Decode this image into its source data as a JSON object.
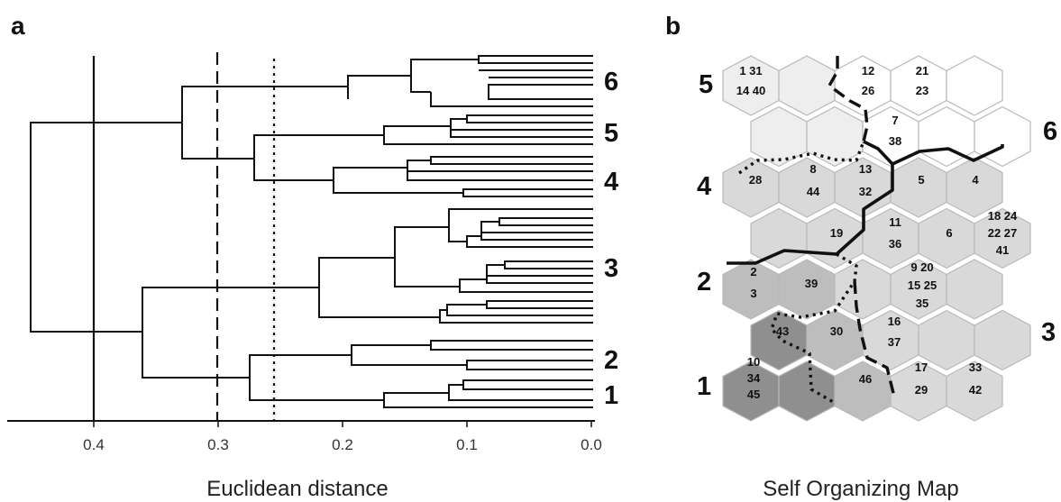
{
  "panel_a": {
    "label": "a",
    "xlabel": "Euclidean distance",
    "ticks": [
      "0.4",
      "0.3",
      "0.2",
      "0.1",
      "0.0"
    ],
    "cluster_labels": [
      "6",
      "5",
      "4",
      "3",
      "2",
      "1"
    ],
    "cut_lines": [
      {
        "value": 0.4,
        "style": "solid"
      },
      {
        "value": 0.3,
        "style": "dashed"
      },
      {
        "value": 0.255,
        "style": "dotted"
      }
    ]
  },
  "panel_b": {
    "label": "b",
    "xlabel": "Self Organizing Map",
    "cluster_labels": [
      "5",
      "6",
      "4",
      "2",
      "3",
      "1"
    ],
    "cell_numbers": [
      "1 31",
      "14 40",
      "12",
      "26",
      "21",
      "23",
      "7",
      "38",
      "28",
      "8",
      "44",
      "13",
      "32",
      "5",
      "4",
      "19",
      "11",
      "36",
      "6",
      "18 24",
      "22 27",
      "41",
      "2",
      "3",
      "39",
      "9 20",
      "15 25",
      "35",
      "43",
      "30",
      "16",
      "37",
      "10",
      "34",
      "45",
      "46",
      "17",
      "29",
      "33",
      "42"
    ]
  },
  "colors": {
    "white": "#ffffff",
    "light": "#eeeeee",
    "mid": "#d9d9d9",
    "grey": "#bdbdbd",
    "dark": "#8f8f8f",
    "line": "#111111"
  }
}
